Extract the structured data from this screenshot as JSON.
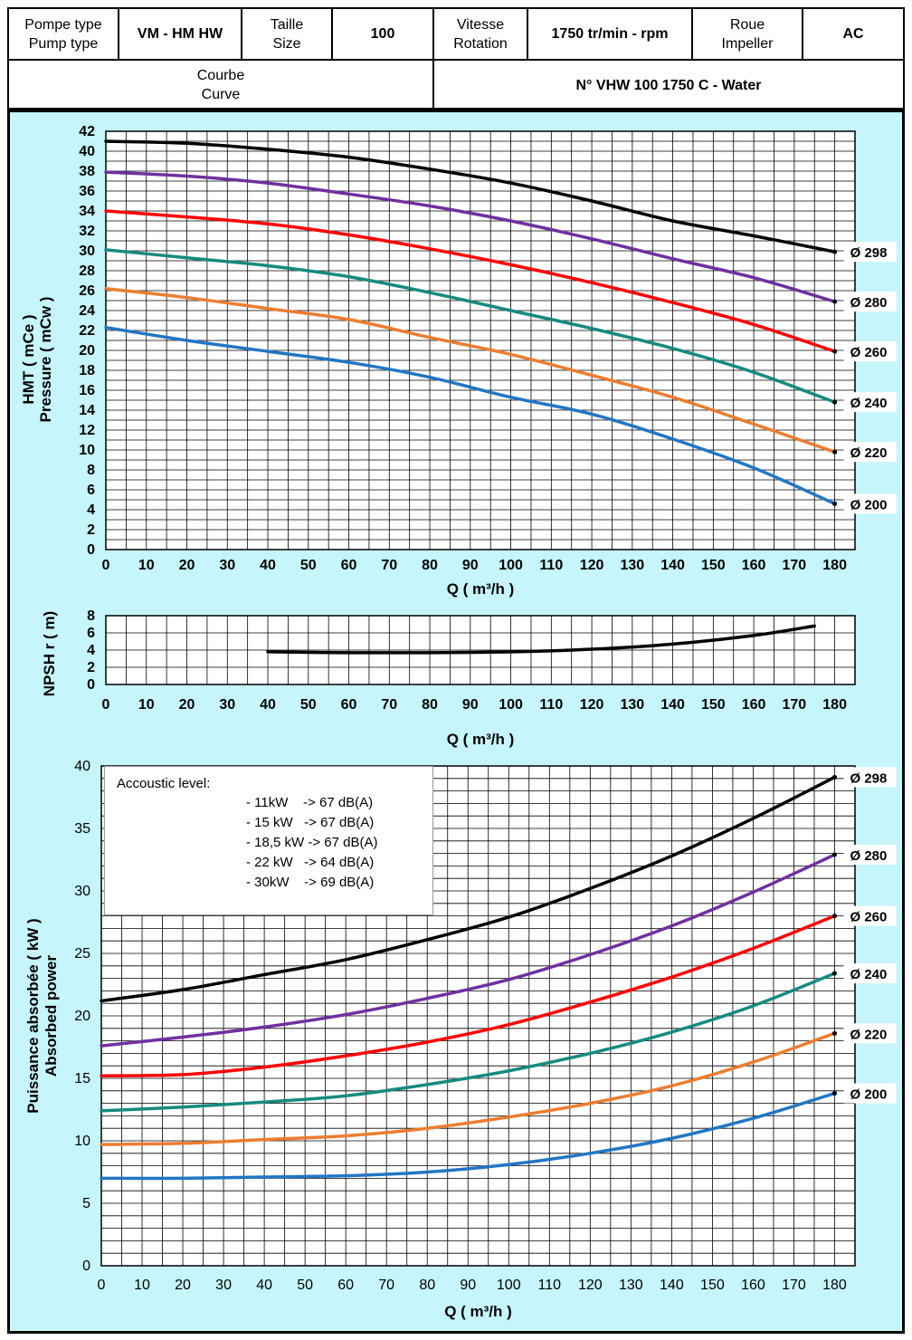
{
  "header": {
    "pump_type_label": "Pompe type\nPump type",
    "pump_type_value": "VM - HM HW",
    "size_label": "Taille\nSize",
    "size_value": "100",
    "speed_label": "Vitesse\nRotation",
    "speed_value": "1750 tr/min - rpm",
    "impeller_label": "Roue\nImpeller",
    "impeller_value": "AC",
    "curve_label": "Courbe\nCurve",
    "curve_value": "N° VHW 100 1750 C - Water"
  },
  "colors": {
    "background": "#c6f6fb",
    "d298": "#000000",
    "d280": "#7030a0",
    "d260": "#ff0000",
    "d240": "#168a80",
    "d220": "#ed7d31",
    "d200": "#2276c4"
  },
  "acoustic": {
    "title": "Accoustic level:",
    "lines": [
      "- 11kW    -> 67 dB(A)",
      "- 15 kW   -> 67 dB(A)",
      "- 18,5 kW -> 67 dB(A)",
      "- 22 kW   -> 64 dB(A)",
      "- 30kW    -> 69 dB(A)"
    ]
  },
  "chart_data": [
    {
      "type": "line",
      "ylabel_line1": "HMT ( mCe )",
      "ylabel_line2": "Pressure ( mCw )",
      "xlabel": "Q ( m³/h )",
      "xlim": [
        0,
        185
      ],
      "ylim": [
        0,
        42
      ],
      "x_ticks": [
        0,
        10,
        20,
        30,
        40,
        50,
        60,
        70,
        80,
        90,
        100,
        110,
        120,
        130,
        140,
        150,
        160,
        170,
        180
      ],
      "y_ticks": [
        0,
        2,
        4,
        6,
        8,
        10,
        12,
        14,
        16,
        18,
        20,
        22,
        24,
        26,
        28,
        30,
        32,
        34,
        36,
        38,
        40,
        42
      ],
      "grid": true,
      "series": [
        {
          "name": "Ø 298",
          "color_key": "d298",
          "x": [
            0,
            20,
            40,
            60,
            80,
            100,
            120,
            140,
            160,
            180
          ],
          "values": [
            41,
            40.8,
            40.2,
            39.4,
            38.2,
            36.8,
            35,
            33,
            31.5,
            29.9
          ]
        },
        {
          "name": "Ø 280",
          "color_key": "d280",
          "x": [
            0,
            20,
            40,
            60,
            80,
            100,
            120,
            140,
            160,
            180
          ],
          "values": [
            37.9,
            37.5,
            36.8,
            35.7,
            34.5,
            33,
            31.2,
            29.2,
            27.3,
            24.9
          ]
        },
        {
          "name": "Ø 260",
          "color_key": "d260",
          "x": [
            0,
            20,
            40,
            60,
            80,
            100,
            120,
            140,
            160,
            180
          ],
          "values": [
            34,
            33.4,
            32.7,
            31.6,
            30.2,
            28.6,
            26.8,
            24.8,
            22.6,
            19.9
          ]
        },
        {
          "name": "Ø 240",
          "color_key": "d240",
          "x": [
            0,
            20,
            40,
            60,
            80,
            100,
            120,
            140,
            160,
            180
          ],
          "values": [
            30.1,
            29.3,
            28.5,
            27.4,
            25.8,
            24,
            22.2,
            20.2,
            17.8,
            14.8
          ]
        },
        {
          "name": "Ø 220",
          "color_key": "d220",
          "x": [
            0,
            20,
            40,
            60,
            80,
            100,
            120,
            140,
            160,
            180
          ],
          "values": [
            26.2,
            25.3,
            24.2,
            23.1,
            21.3,
            19.6,
            17.5,
            15.3,
            12.6,
            9.8
          ]
        },
        {
          "name": "Ø 200",
          "color_key": "d200",
          "x": [
            0,
            20,
            40,
            60,
            80,
            100,
            120,
            140,
            160,
            180
          ],
          "values": [
            22.3,
            21,
            19.9,
            18.8,
            17.3,
            15.3,
            13.6,
            11.1,
            8.2,
            4.6
          ]
        }
      ]
    },
    {
      "type": "line",
      "ylabel": "NPSH r ( m)",
      "xlabel": "Q ( m³/h )",
      "xlim": [
        0,
        185
      ],
      "ylim": [
        0,
        8
      ],
      "x_ticks": [
        0,
        10,
        20,
        30,
        40,
        50,
        60,
        70,
        80,
        90,
        100,
        110,
        120,
        130,
        140,
        150,
        160,
        170,
        180
      ],
      "y_ticks": [
        0,
        2,
        4,
        6,
        8
      ],
      "grid": true,
      "series": [
        {
          "color_key": "d298",
          "x": [
            40,
            60,
            80,
            100,
            120,
            140,
            160,
            175
          ],
          "values": [
            3.8,
            3.7,
            3.7,
            3.8,
            4.1,
            4.7,
            5.7,
            6.8
          ]
        }
      ]
    },
    {
      "type": "line",
      "ylabel_line1": "Puissance absorbée ( kW )",
      "ylabel_line2": "Absorbed power",
      "xlabel": "Q ( m³/h )",
      "xlim": [
        0,
        185
      ],
      "ylim": [
        0,
        40
      ],
      "x_ticks": [
        0,
        10,
        20,
        30,
        40,
        50,
        60,
        70,
        80,
        90,
        100,
        110,
        120,
        130,
        140,
        150,
        160,
        170,
        180
      ],
      "y_ticks": [
        0,
        5,
        10,
        15,
        20,
        25,
        30,
        35,
        40
      ],
      "grid": true,
      "series": [
        {
          "name": "Ø 298",
          "color_key": "d298",
          "x": [
            0,
            20,
            40,
            60,
            80,
            100,
            120,
            140,
            160,
            180
          ],
          "values": [
            21.2,
            22.1,
            23.3,
            24.5,
            26.1,
            27.9,
            30.2,
            32.8,
            35.8,
            39.1
          ]
        },
        {
          "name": "Ø 280",
          "color_key": "d280",
          "x": [
            0,
            20,
            40,
            60,
            80,
            100,
            120,
            140,
            160,
            180
          ],
          "values": [
            17.6,
            18.3,
            19.1,
            20.1,
            21.4,
            22.9,
            24.9,
            27.2,
            29.9,
            32.9
          ]
        },
        {
          "name": "Ø 260",
          "color_key": "d260",
          "x": [
            0,
            20,
            40,
            60,
            80,
            100,
            120,
            140,
            160,
            180
          ],
          "values": [
            15.2,
            15.3,
            15.9,
            16.8,
            17.9,
            19.3,
            21.1,
            23.1,
            25.4,
            28
          ]
        },
        {
          "name": "Ø 240",
          "color_key": "d240",
          "x": [
            0,
            20,
            40,
            60,
            80,
            100,
            120,
            140,
            160,
            180
          ],
          "values": [
            12.4,
            12.7,
            13.1,
            13.6,
            14.5,
            15.6,
            17,
            18.7,
            20.8,
            23.4
          ]
        },
        {
          "name": "Ø 220",
          "color_key": "d220",
          "x": [
            0,
            20,
            40,
            60,
            80,
            100,
            120,
            140,
            160,
            180
          ],
          "values": [
            9.7,
            9.8,
            10.1,
            10.4,
            11,
            11.9,
            13,
            14.4,
            16.3,
            18.6
          ]
        },
        {
          "name": "Ø 200",
          "color_key": "d200",
          "x": [
            0,
            20,
            40,
            60,
            80,
            100,
            120,
            140,
            160,
            180
          ],
          "values": [
            7,
            7,
            7.1,
            7.2,
            7.5,
            8.1,
            9,
            10.2,
            11.8,
            13.8
          ]
        }
      ]
    }
  ]
}
